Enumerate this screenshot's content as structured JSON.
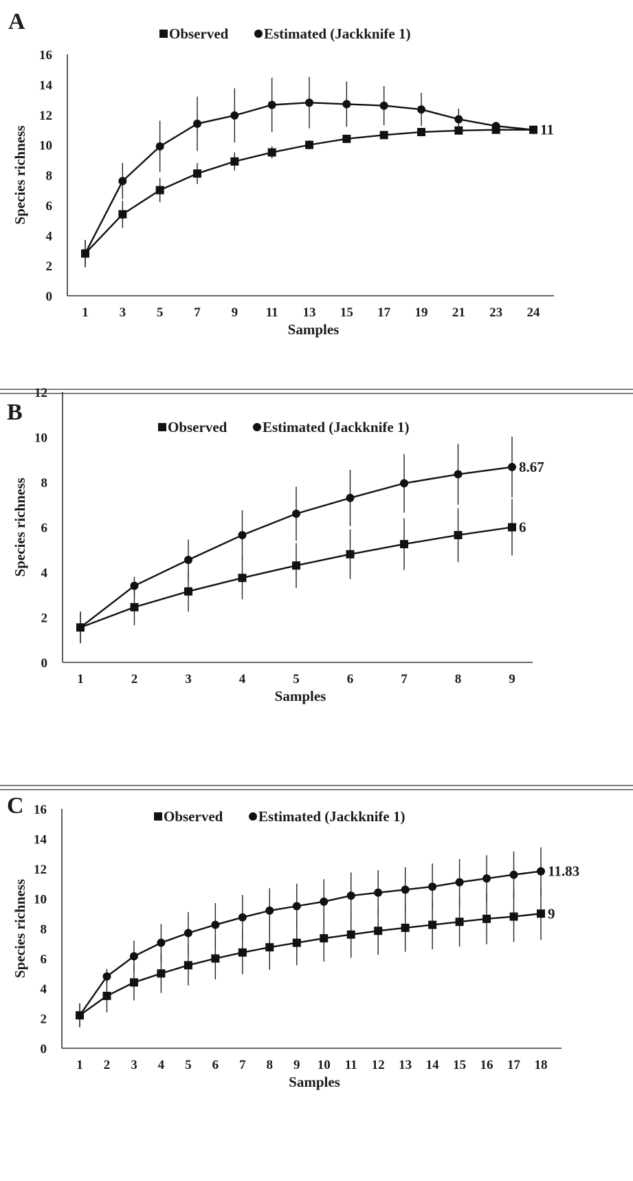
{
  "chart_data": [
    {
      "panel": "A",
      "type": "line",
      "xlabel": "Samples",
      "ylabel": "Species richness",
      "ylim": [
        0,
        16
      ],
      "yticks": [
        0,
        2,
        4,
        6,
        8,
        10,
        12,
        14,
        16
      ],
      "categories": [
        "1",
        "3",
        "5",
        "7",
        "9",
        "11",
        "13",
        "15",
        "17",
        "19",
        "21",
        "23",
        "24"
      ],
      "legend_position": "top-center",
      "grid": false,
      "series": [
        {
          "name": "Observed",
          "marker": "square",
          "values": [
            2.8,
            5.4,
            7.0,
            8.1,
            8.9,
            9.5,
            10.0,
            10.4,
            10.65,
            10.85,
            10.95,
            11.0,
            11.0
          ],
          "errors": [
            0.9,
            0.9,
            0.8,
            0.7,
            0.6,
            0.4,
            0.3,
            0,
            0,
            0,
            0,
            0,
            0
          ]
        },
        {
          "name": "Estimated (Jackknife 1)",
          "marker": "circle",
          "values": [
            2.8,
            7.6,
            9.9,
            11.4,
            11.95,
            12.65,
            12.8,
            12.7,
            12.6,
            12.35,
            11.7,
            11.25,
            11.0
          ],
          "errors": [
            0.9,
            1.2,
            1.7,
            1.8,
            1.8,
            1.8,
            1.7,
            1.5,
            1.3,
            1.1,
            0.7,
            0.2,
            0
          ]
        }
      ],
      "end_labels": [
        {
          "series": 0,
          "text": "11"
        }
      ]
    },
    {
      "panel": "B",
      "type": "line",
      "xlabel": "Samples",
      "ylabel": "Species richness",
      "ylim": [
        0,
        12
      ],
      "yticks": [
        0,
        2,
        4,
        6,
        8,
        10,
        12
      ],
      "categories": [
        "1",
        "2",
        "3",
        "4",
        "5",
        "6",
        "7",
        "8",
        "9"
      ],
      "legend_position": "top-center",
      "grid": false,
      "series": [
        {
          "name": "Observed",
          "marker": "square",
          "values": [
            1.55,
            2.45,
            3.15,
            3.75,
            4.3,
            4.8,
            5.25,
            5.65,
            6.0
          ],
          "errors": [
            0.7,
            0.8,
            0.9,
            0.95,
            1.0,
            1.1,
            1.15,
            1.2,
            1.25
          ]
        },
        {
          "name": "Estimated (Jackknife 1)",
          "marker": "circle",
          "values": [
            1.55,
            3.4,
            4.55,
            5.65,
            6.6,
            7.3,
            7.95,
            8.35,
            8.67
          ],
          "errors": [
            0.7,
            0.4,
            0.9,
            1.1,
            1.2,
            1.25,
            1.3,
            1.35,
            1.35
          ]
        }
      ],
      "end_labels": [
        {
          "series": 1,
          "text": "8.67"
        },
        {
          "series": 0,
          "text": "6"
        }
      ]
    },
    {
      "panel": "C",
      "type": "line",
      "xlabel": "Samples",
      "ylabel": "Species richness",
      "ylim": [
        0,
        16
      ],
      "yticks": [
        0,
        2,
        4,
        6,
        8,
        10,
        12,
        14,
        16
      ],
      "categories": [
        "1",
        "2",
        "3",
        "4",
        "5",
        "6",
        "7",
        "8",
        "9",
        "10",
        "11",
        "12",
        "13",
        "14",
        "15",
        "16",
        "17",
        "18"
      ],
      "legend_position": "top-center",
      "grid": false,
      "series": [
        {
          "name": "Observed",
          "marker": "square",
          "values": [
            2.2,
            3.5,
            4.4,
            5.0,
            5.55,
            6.0,
            6.4,
            6.75,
            7.05,
            7.35,
            7.6,
            7.85,
            8.05,
            8.25,
            8.45,
            8.65,
            8.8,
            9.0
          ],
          "errors": [
            0.8,
            1.1,
            1.2,
            1.3,
            1.35,
            1.4,
            1.45,
            1.5,
            1.5,
            1.55,
            1.55,
            1.6,
            1.6,
            1.65,
            1.65,
            1.7,
            1.7,
            1.75
          ]
        },
        {
          "name": "Estimated (Jackknife 1)",
          "marker": "circle",
          "values": [
            2.2,
            4.8,
            6.15,
            7.05,
            7.7,
            8.25,
            8.75,
            9.2,
            9.5,
            9.8,
            10.2,
            10.4,
            10.6,
            10.8,
            11.1,
            11.35,
            11.6,
            11.83
          ],
          "errors": [
            0.8,
            0.5,
            1.05,
            1.25,
            1.4,
            1.45,
            1.5,
            1.5,
            1.5,
            1.5,
            1.55,
            1.5,
            1.5,
            1.55,
            1.55,
            1.55,
            1.55,
            1.6
          ]
        }
      ],
      "end_labels": [
        {
          "series": 1,
          "text": "11.83"
        },
        {
          "series": 0,
          "text": "9"
        }
      ]
    }
  ]
}
